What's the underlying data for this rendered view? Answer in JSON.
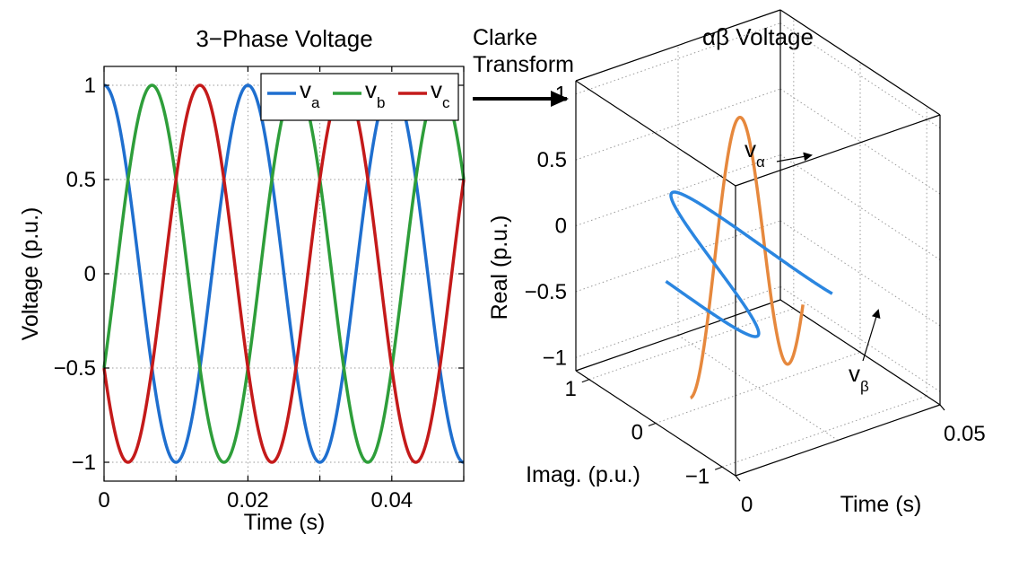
{
  "chart_data": [
    {
      "type": "line",
      "title": "3−Phase Voltage",
      "xlabel": "Time (s)",
      "ylabel": "Voltage (p.u.)",
      "xlim": [
        0,
        0.05
      ],
      "ylim": [
        -1.1,
        1.1
      ],
      "x_ticks": [
        "0",
        "0.02",
        "0.04"
      ],
      "y_ticks": [
        "−1",
        "−0.5",
        "0",
        "0.5",
        "1"
      ],
      "grid": true,
      "legend_position": "top-right",
      "frequency_hz": 50,
      "series": [
        {
          "name": "v",
          "subscript": "a",
          "color": "#1f6fcf",
          "amplitude": 1,
          "phase_deg": 0
        },
        {
          "name": "v",
          "subscript": "b",
          "color": "#2e9e3a",
          "amplitude": 1,
          "phase_deg": -120
        },
        {
          "name": "v",
          "subscript": "c",
          "color": "#c41a1a",
          "amplitude": 1,
          "phase_deg": 120
        }
      ]
    },
    {
      "type": "line",
      "title": "αβ Voltage",
      "xlabel": "Time (s)",
      "ylabel": "Imag. (p.u.)",
      "zlabel": "Real (p.u.)",
      "time_ticks": [
        "0",
        "0.05"
      ],
      "imag_ticks": [
        "−1",
        "0",
        "1"
      ],
      "real_ticks": [
        "−1",
        "−0.5",
        "0",
        "0.5",
        "1"
      ],
      "grid": true,
      "frequency_hz": 50,
      "time_range": [
        0,
        0.05
      ],
      "series": [
        {
          "name": "v",
          "subscript": "α",
          "color": "#e6883d",
          "component": "alpha (Real)"
        },
        {
          "name": "v",
          "subscript": "β",
          "color": "#2b86e0",
          "component": "beta (Imag)"
        }
      ]
    }
  ],
  "arrow_label": [
    "Clarke",
    "Transform"
  ]
}
